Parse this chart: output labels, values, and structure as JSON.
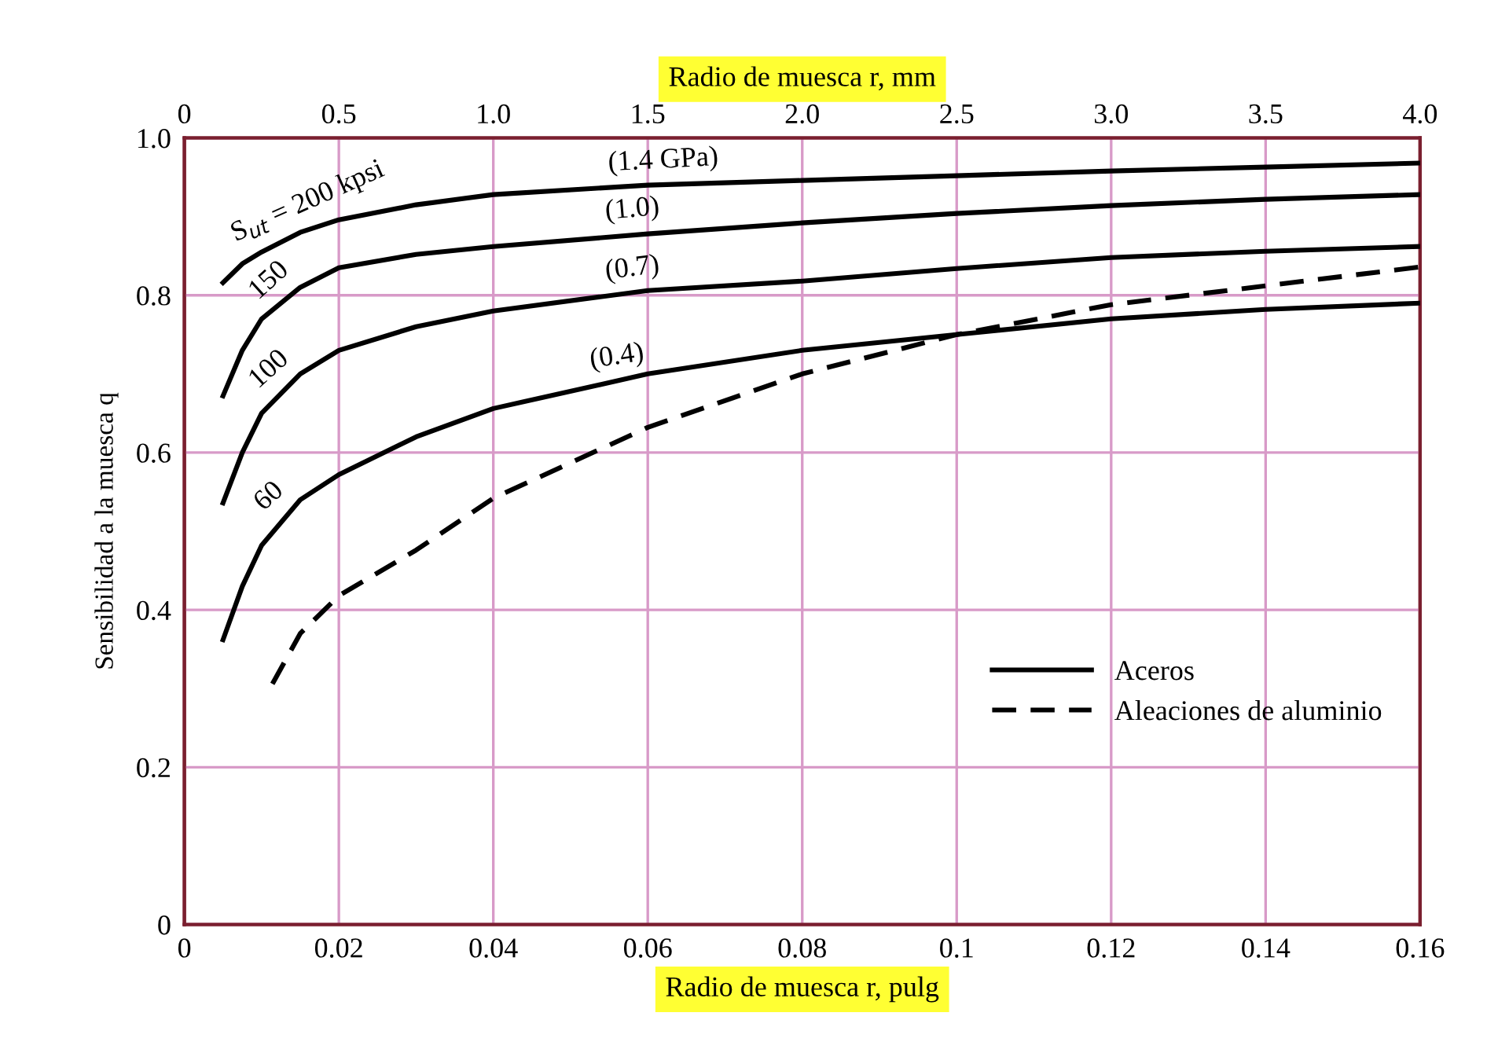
{
  "chart_data": {
    "type": "line",
    "xlabel": "Radio de muesca r, pulg",
    "x2label": "Radio de muesca r, mm",
    "ylabel": "Sensibilidad a la muesca q",
    "xlim": [
      0,
      0.16
    ],
    "xticks": [
      0,
      0.02,
      0.04,
      0.06,
      0.08,
      0.1,
      0.12,
      0.14,
      0.16
    ],
    "x2lim": [
      0,
      4.0
    ],
    "x2ticks": [
      0,
      {
        "value": 0.5,
        "label": "0.5"
      },
      {
        "value": 1,
        "label": "1.0"
      },
      {
        "value": 1.5,
        "label": "1.5"
      },
      {
        "value": 2,
        "label": "2.0"
      },
      {
        "value": 2.5,
        "label": "2.5"
      },
      {
        "value": 3,
        "label": "3.0"
      },
      {
        "value": 3.5,
        "label": "3.5"
      },
      {
        "value": 4,
        "label": "4.0"
      }
    ],
    "ylim": [
      0,
      1.0
    ],
    "yticks": [
      0,
      {
        "value": 0.2,
        "label": "0.2"
      },
      {
        "value": 0.4,
        "label": "0.4"
      },
      {
        "value": 0.6,
        "label": "0.6"
      },
      {
        "value": 0.8,
        "label": "0.8"
      },
      {
        "value": 1,
        "label": "1.0"
      }
    ],
    "grid": true,
    "legend": "bottom right",
    "marker": "none",
    "series": [
      {
        "name": "Aceros",
        "color": "#000000",
        "line_style": "solid",
        "x": [
          0.005,
          0.0075,
          0.01,
          0.015,
          0.02,
          0.03,
          0.04,
          0.06,
          0.08,
          0.1,
          0.12,
          0.14,
          0.16
        ],
        "values": [
          0.816,
          0.84,
          0.855,
          0.88,
          0.896,
          0.915,
          0.928,
          0.94,
          0.946,
          0.952,
          0.958,
          0.963,
          0.968
        ]
      },
      {
        "color": "#000000",
        "line_style": "solid",
        "x": [
          0.005,
          0.0075,
          0.01,
          0.015,
          0.02,
          0.03,
          0.04,
          0.06,
          0.08,
          0.1,
          0.12,
          0.14,
          0.16
        ],
        "values": [
          0.672,
          0.73,
          0.77,
          0.81,
          0.835,
          0.852,
          0.862,
          0.878,
          0.892,
          0.904,
          0.914,
          0.922,
          0.928
        ]
      },
      {
        "color": "#000000",
        "line_style": "solid",
        "x": [
          0.005,
          0.0075,
          0.01,
          0.015,
          0.02,
          0.03,
          0.04,
          0.06,
          0.08,
          0.1,
          0.12,
          0.14,
          0.16
        ],
        "values": [
          0.536,
          0.6,
          0.65,
          0.7,
          0.73,
          0.76,
          0.78,
          0.806,
          0.818,
          0.834,
          0.848,
          0.856,
          0.862
        ]
      },
      {
        "color": "#000000",
        "line_style": "solid",
        "x": [
          0.005,
          0.0075,
          0.01,
          0.015,
          0.02,
          0.03,
          0.04,
          0.06,
          0.08,
          0.1,
          0.12,
          0.14,
          0.16
        ],
        "values": [
          0.362,
          0.43,
          0.482,
          0.54,
          0.572,
          0.62,
          0.656,
          0.7,
          0.73,
          0.75,
          0.77,
          0.782,
          0.79
        ]
      },
      {
        "name": "Aleaciones de aluminio",
        "color": "#000000",
        "line_style": "dashed",
        "x": [
          0.0114,
          0.015,
          0.02,
          0.03,
          0.04,
          0.06,
          0.08,
          0.1,
          0.12,
          0.14,
          0.16
        ],
        "values": [
          0.306,
          0.37,
          0.418,
          0.476,
          0.542,
          0.632,
          0.7,
          0.75,
          0.788,
          0.812,
          0.836
        ]
      }
    ],
    "annotations": [
      "S$_{ut}$ = 200 kpsi",
      "150",
      "100",
      "60",
      "(1.4 GPa)",
      "(1.0)",
      "(0.7)",
      "(0.4)"
    ]
  }
}
